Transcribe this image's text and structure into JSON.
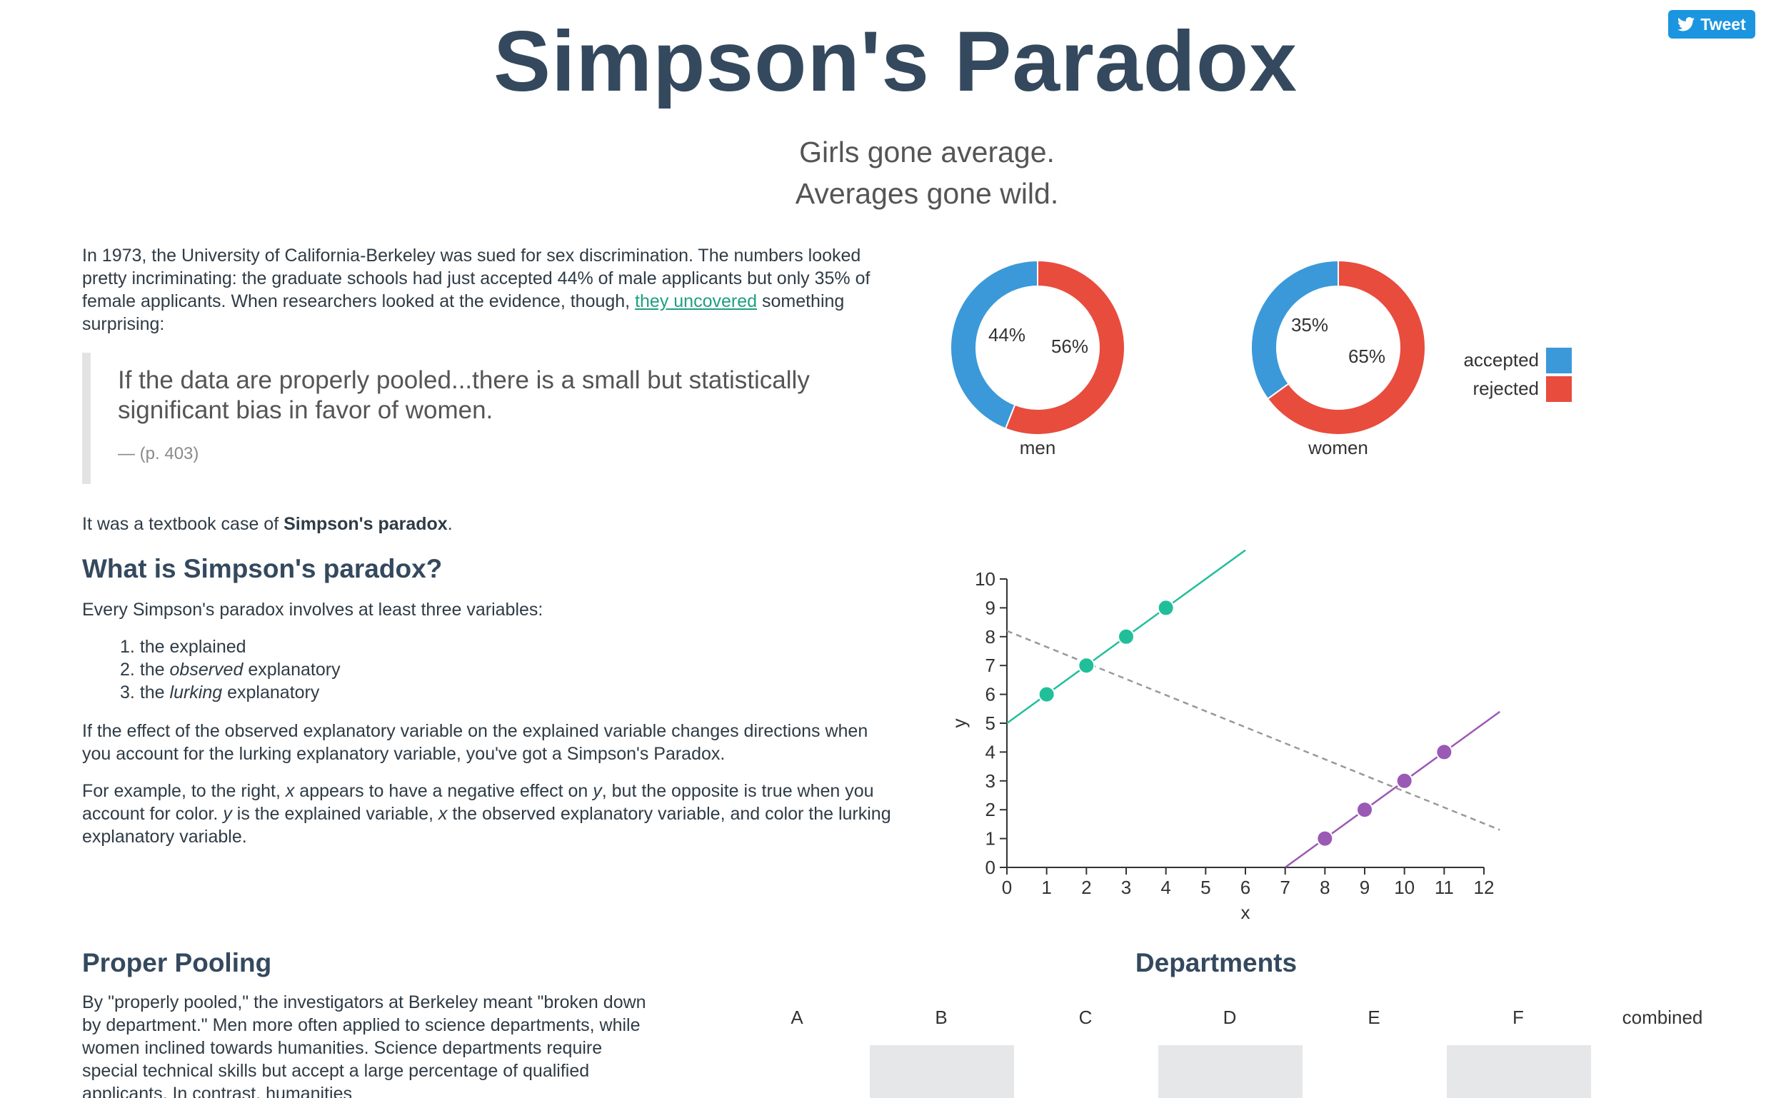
{
  "tweet_label": "Tweet",
  "title": "Simpson's Paradox",
  "subtitle_line1": "Girls gone average.",
  "subtitle_line2": "Averages gone wild.",
  "intro": {
    "before_link": "In 1973, the University of California-Berkeley was sued for sex discrimination. The numbers looked pretty incriminating: the graduate schools had just accepted 44% of male applicants but only 35% of female applicants. When researchers looked at the evidence, though, ",
    "link": "they uncovered",
    "after_link": " something surprising:"
  },
  "quote": {
    "text": "If the data are properly pooled...there is a small but statistically significant bias in favor of women.",
    "cite": "— (p. 403)"
  },
  "textbook": {
    "before": "It was a textbook case of ",
    "bold": "Simpson's paradox",
    "after": "."
  },
  "what_heading": "What is Simpson's paradox?",
  "every_text": "Every Simpson's paradox involves at least three variables:",
  "variables": [
    {
      "num": "1.",
      "pre": "the explained",
      "em": "",
      "post": ""
    },
    {
      "num": "2.",
      "pre": "the ",
      "em": "observed",
      "post": " explanatory"
    },
    {
      "num": "3.",
      "pre": "the ",
      "em": "lurking",
      "post": " explanatory"
    }
  ],
  "effect_text": "If the effect of the observed explanatory variable on the explained variable changes directions when you account for the lurking explanatory variable, you've got a Simpson's Paradox.",
  "example_parts": [
    {
      "t": "For example, to the right, ",
      "i": false
    },
    {
      "t": "x",
      "i": true
    },
    {
      "t": " appears to have a negative effect on ",
      "i": false
    },
    {
      "t": "y",
      "i": true
    },
    {
      "t": ", but the opposite is true when you account for color. ",
      "i": false
    },
    {
      "t": "y",
      "i": true
    },
    {
      "t": " is the explained variable, ",
      "i": false
    },
    {
      "t": "x",
      "i": true
    },
    {
      "t": " the observed explanatory variable, and color the lurking explanatory variable.",
      "i": false
    }
  ],
  "pooling_heading": "Proper Pooling",
  "pooling_text": "By \"properly pooled,\" the investigators at Berkeley meant \"broken down by department.\" Men more often applied to science departments, while women inclined towards humanities. Science departments require special technical skills but accept a large percentage of qualified applicants. In contrast, humanities",
  "departments_heading": "Departments",
  "department_labels": [
    "A",
    "B",
    "C",
    "D",
    "E",
    "F",
    "combined"
  ],
  "colors": {
    "accepted": "#3b99d9",
    "rejected": "#e84c3d",
    "teal": "#20bf9a",
    "purple": "#9b59b6",
    "dashed": "#999999",
    "heading": "#34495e"
  },
  "chart_data": [
    {
      "type": "pie",
      "variant": "donut",
      "label": "men",
      "categories": [
        "accepted",
        "rejected"
      ],
      "values": [
        44,
        56
      ],
      "value_labels": [
        "44%",
        "56%"
      ]
    },
    {
      "type": "pie",
      "variant": "donut",
      "label": "women",
      "categories": [
        "accepted",
        "rejected"
      ],
      "values": [
        35,
        65
      ],
      "value_labels": [
        "35%",
        "65%"
      ],
      "legend": [
        "accepted",
        "rejected"
      ],
      "legend_position": "right"
    },
    {
      "type": "scatter",
      "xlabel": "x",
      "ylabel": "y",
      "xlim": [
        0,
        12
      ],
      "ylim": [
        0,
        10
      ],
      "xticks": [
        0,
        1,
        2,
        3,
        4,
        5,
        6,
        7,
        8,
        9,
        10,
        11,
        12
      ],
      "yticks": [
        0,
        1,
        2,
        3,
        4,
        5,
        6,
        7,
        8,
        9,
        10
      ],
      "grid": false,
      "series": [
        {
          "color": "teal",
          "x": [
            1,
            2,
            3,
            4
          ],
          "y": [
            6,
            7,
            8,
            9
          ],
          "trend": {
            "slope": 1,
            "intercept": 5,
            "x_range": [
              0,
              6
            ]
          }
        },
        {
          "color": "purple",
          "x": [
            8,
            9,
            10,
            11
          ],
          "y": [
            1,
            2,
            3,
            4
          ],
          "trend": {
            "slope": 1,
            "intercept": -7,
            "x_range": [
              7,
              12.4
            ]
          }
        }
      ],
      "overall_trend": {
        "style": "dashed",
        "x_range": [
          0,
          12.4
        ],
        "y_start": 8.2,
        "y_end": 1.3
      }
    }
  ]
}
